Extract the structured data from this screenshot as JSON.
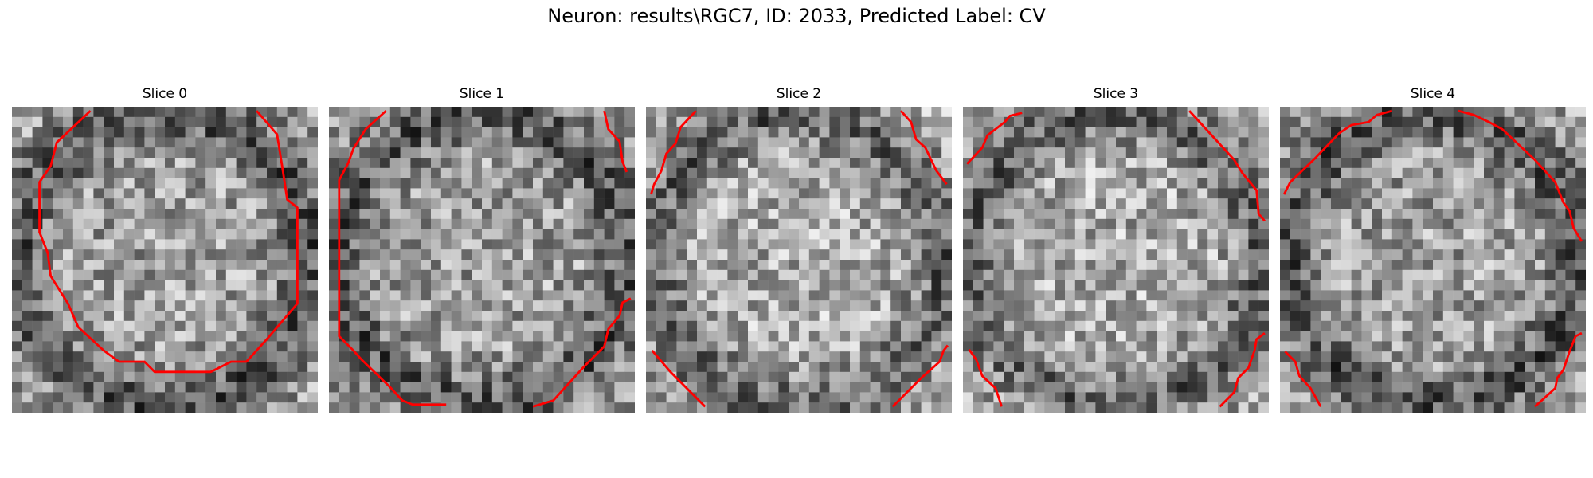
{
  "title": "Neuron: results\\RGC7, ID: 2033, Predicted Label: CV",
  "slices": [
    {
      "label": "Slice 0"
    },
    {
      "label": "Slice 1"
    },
    {
      "label": "Slice 2"
    },
    {
      "label": "Slice 3"
    },
    {
      "label": "Slice 4"
    }
  ],
  "colors": {
    "contour": "#ff0000",
    "background": "#ffffff"
  }
}
